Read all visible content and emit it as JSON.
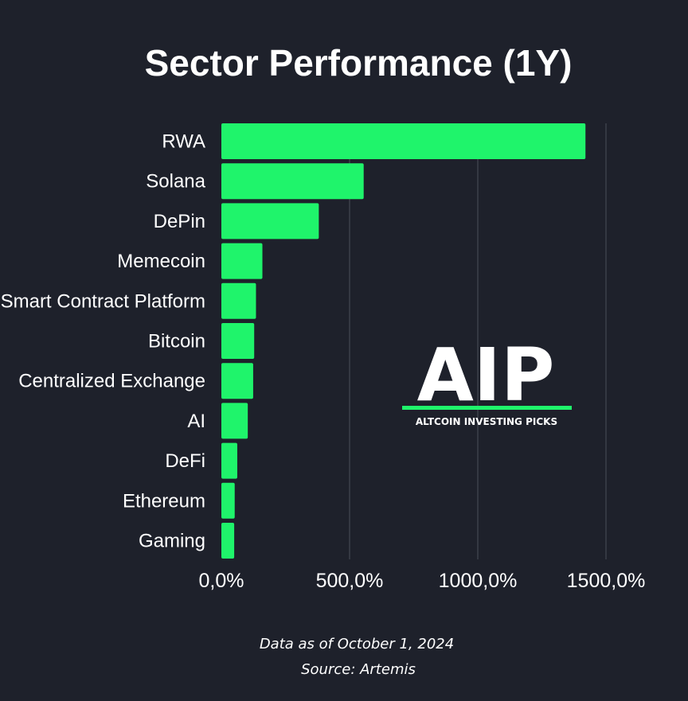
{
  "chart_data": {
    "type": "bar",
    "orientation": "horizontal",
    "title": "Sector Performance (1Y)",
    "categories": [
      "RWA",
      "Solana",
      "DePin",
      "Memecoin",
      "Smart Contract Platform",
      "Bitcoin",
      "Centralized Exchange",
      "AI",
      "DeFi",
      "Ethereum",
      "Gaming"
    ],
    "values": [
      1420,
      555,
      380,
      160,
      135,
      128,
      124,
      103,
      62,
      52,
      50
    ],
    "xlim": [
      0,
      1500
    ],
    "xticks": [
      0,
      500,
      1000,
      1500
    ],
    "xtick_labels": [
      "0,0%",
      "500,0%",
      "1000,0%",
      "1500,0%"
    ],
    "grid": true,
    "bar_color": "#1ff46b",
    "grid_color": "#4a4e5a"
  },
  "logo": {
    "text": "AIP",
    "subtitle": "ALTCOIN INVESTING PICKS",
    "accent_color": "#1ff46b"
  },
  "footer": {
    "date_note": "Data as of October 1, 2024",
    "source": "Source: Artemis"
  }
}
